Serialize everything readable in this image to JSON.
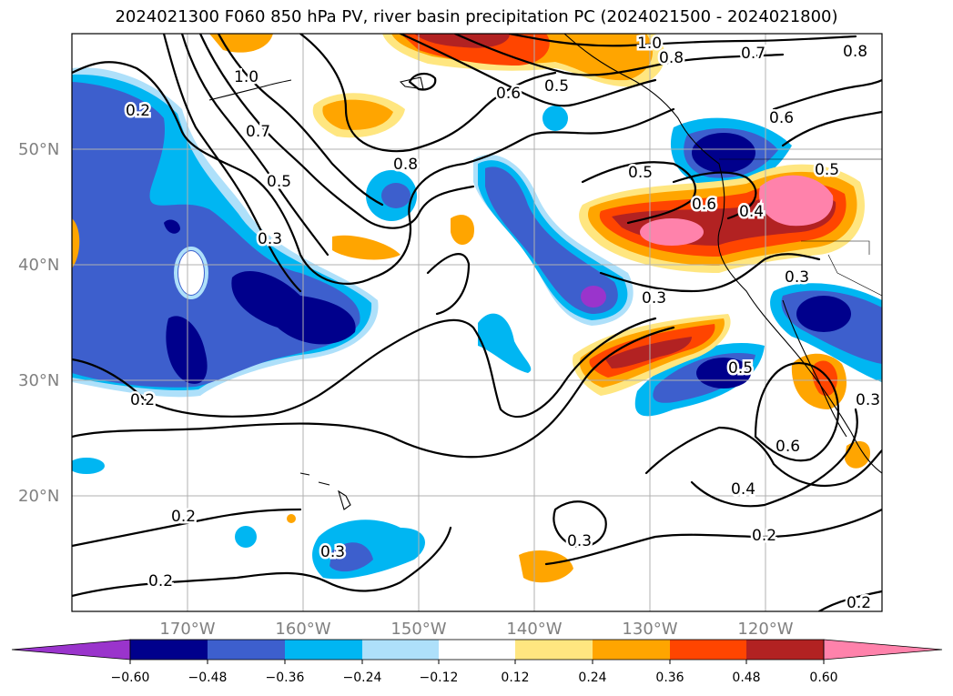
{
  "figure": {
    "title": "2024021300 F060 850 hPa PV, river basin precipitation PC (2024021500 - 2024021800)"
  },
  "map": {
    "lon_range": [
      -180,
      -110
    ],
    "lat_range": [
      10,
      60
    ],
    "gridlines": true,
    "latitude_labels": [
      "50°N",
      "40°N",
      "30°N",
      "20°N"
    ],
    "longitude_labels": [
      "170°W",
      "160°W",
      "150°W",
      "140°W",
      "130°W",
      "120°W"
    ],
    "fill_colors": {
      "lt_-0.60": "#9a34cc",
      "-0.60_-0.48": "#00008c",
      "-0.48_-0.36": "#3d5fcd",
      "-0.36_-0.24": "#00b6f2",
      "-0.24_-0.12": "#aee0fa",
      "0.12_0.24": "#ffe680",
      "0.24_0.36": "#ffa500",
      "0.36_0.48": "#ff4500",
      "0.48_0.60": "#b22222",
      "gt_0.60": "#ff82ab"
    },
    "contour_labels": [
      "1.0",
      "0.8",
      "0.7",
      "0.6",
      "0.5",
      "0.4",
      "0.3",
      "0.2"
    ]
  },
  "colorbar": {
    "tick_labels": [
      "−0.60",
      "−0.48",
      "−0.36",
      "−0.24",
      "−0.12",
      "0.12",
      "0.24",
      "0.36",
      "0.48",
      "0.60"
    ],
    "extend": "both"
  }
}
